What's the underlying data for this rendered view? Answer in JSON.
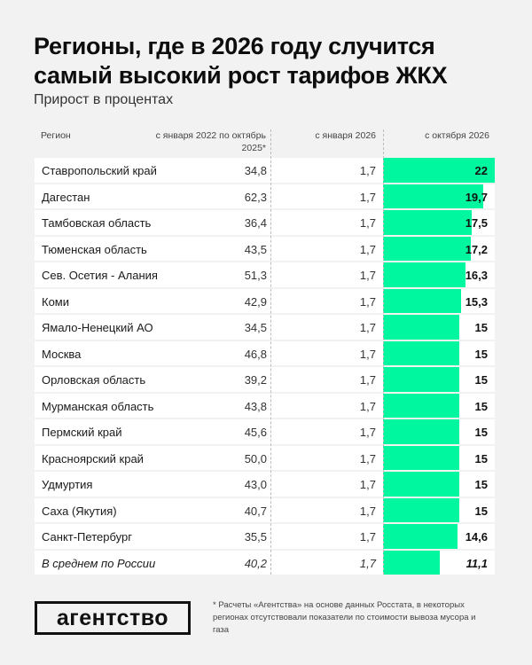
{
  "header": {
    "title": "Регионы, где в 2026 году случится самый высокий рост тарифов ЖКХ",
    "subtitle": "Прирост в процентах"
  },
  "columns": {
    "region": "Регион",
    "col1": "с января 2022 по октябрь 2025*",
    "col2": "с января 2026",
    "col3": "с октября 2026"
  },
  "rows": [
    {
      "region": "Ставропольский край",
      "v1": "34,8",
      "v2": "1,7",
      "v3": "22"
    },
    {
      "region": "Дагестан",
      "v1": "62,3",
      "v2": "1,7",
      "v3": "19,7"
    },
    {
      "region": "Тамбовская область",
      "v1": "36,4",
      "v2": "1,7",
      "v3": "17,5"
    },
    {
      "region": "Тюменская область",
      "v1": "43,5",
      "v2": "1,7",
      "v3": "17,2"
    },
    {
      "region": "Сев. Осетия - Алания",
      "v1": "51,3",
      "v2": "1,7",
      "v3": "16,3"
    },
    {
      "region": "Коми",
      "v1": "42,9",
      "v2": "1,7",
      "v3": "15,3"
    },
    {
      "region": "Ямало-Ненецкий АО",
      "v1": "34,5",
      "v2": "1,7",
      "v3": "15"
    },
    {
      "region": "Москва",
      "v1": "46,8",
      "v2": "1,7",
      "v3": "15"
    },
    {
      "region": "Орловская область",
      "v1": "39,2",
      "v2": "1,7",
      "v3": "15"
    },
    {
      "region": "Мурманская область",
      "v1": "43,8",
      "v2": "1,7",
      "v3": "15"
    },
    {
      "region": "Пермский край",
      "v1": "45,6",
      "v2": "1,7",
      "v3": "15"
    },
    {
      "region": "Красноярский край",
      "v1": "50,0",
      "v2": "1,7",
      "v3": "15"
    },
    {
      "region": "Удмуртия",
      "v1": "43,0",
      "v2": "1,7",
      "v3": "15"
    },
    {
      "region": "Саха (Якутия)",
      "v1": "40,7",
      "v2": "1,7",
      "v3": "15"
    },
    {
      "region": "Санкт-Петербург",
      "v1": "35,5",
      "v2": "1,7",
      "v3": "14,6"
    },
    {
      "region": "В среднем по России",
      "v1": "40,2",
      "v2": "1,7",
      "v3": "11,1"
    }
  ],
  "footer": {
    "logo": "агентство",
    "note": "* Расчеты «Агентства» на основе данных Росстата, в некоторых регионах отсутствовали показатели по стоимости вывоза мусора и газа"
  },
  "colors": {
    "bar": "#00f7a0",
    "background": "#f2f2f2",
    "row": "#ffffff"
  },
  "chart_data": {
    "type": "table",
    "title": "Регионы, где в 2026 году случится самый высокий рост тарифов ЖКХ",
    "subtitle": "Прирост в процентах",
    "columns": [
      "Регион",
      "с января 2022 по октябрь 2025*",
      "с января 2026",
      "с октября 2026"
    ],
    "categories": [
      "Ставропольский край",
      "Дагестан",
      "Тамбовская область",
      "Тюменская область",
      "Сев. Осетия - Алания",
      "Коми",
      "Ямало-Ненецкий АО",
      "Москва",
      "Орловская область",
      "Мурманская область",
      "Пермский край",
      "Красноярский край",
      "Удмуртия",
      "Саха (Якутия)",
      "Санкт-Петербург",
      "В среднем по России"
    ],
    "series": [
      {
        "name": "с января 2022 по октябрь 2025*",
        "values": [
          34.8,
          62.3,
          36.4,
          43.5,
          51.3,
          42.9,
          34.5,
          46.8,
          39.2,
          43.8,
          45.6,
          50.0,
          43.0,
          40.7,
          35.5,
          40.2
        ]
      },
      {
        "name": "с января 2026",
        "values": [
          1.7,
          1.7,
          1.7,
          1.7,
          1.7,
          1.7,
          1.7,
          1.7,
          1.7,
          1.7,
          1.7,
          1.7,
          1.7,
          1.7,
          1.7,
          1.7
        ]
      },
      {
        "name": "с октября 2026",
        "values": [
          22,
          19.7,
          17.5,
          17.2,
          16.3,
          15.3,
          15,
          15,
          15,
          15,
          15,
          15,
          15,
          15,
          14.6,
          11.1
        ],
        "display": "bar",
        "color": "#00f7a0"
      }
    ],
    "xlabel": "",
    "ylabel": "Прирост в процентах",
    "bar_max": 22
  }
}
